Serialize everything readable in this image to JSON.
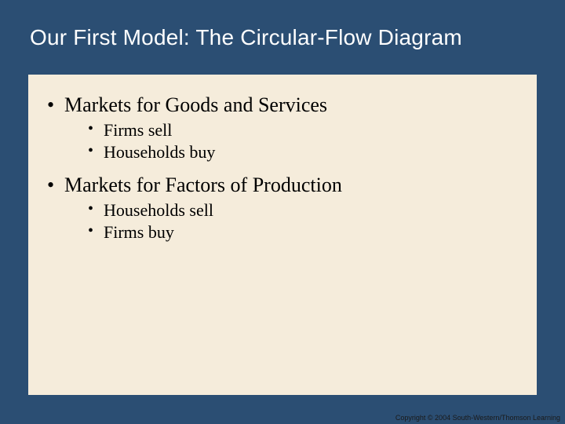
{
  "colors": {
    "slide_bg": "#2b4e73",
    "title_band_bg": "#2b4e73",
    "title_text": "#ffffff",
    "content_bg": "#f5ecdb",
    "body_text": "#000000",
    "copyright_text": "#1a1a1a"
  },
  "typography": {
    "title_font": "Arial",
    "title_fontsize_pt": 21,
    "body_font": "Times New Roman",
    "l1_fontsize_pt": 20,
    "l2_fontsize_pt": 17,
    "copyright_fontsize_pt": 7
  },
  "title": "Our First Model: The Circular-Flow Diagram",
  "bullets": {
    "item1": {
      "text": "Markets for Goods and Services",
      "sub": {
        "a": "Firms sell",
        "b": "Households buy"
      }
    },
    "item2": {
      "text": "Markets for Factors of Production",
      "sub": {
        "a": "Households sell",
        "b": "Firms buy"
      }
    }
  },
  "copyright": "Copyright © 2004  South-Western/Thomson Learning"
}
